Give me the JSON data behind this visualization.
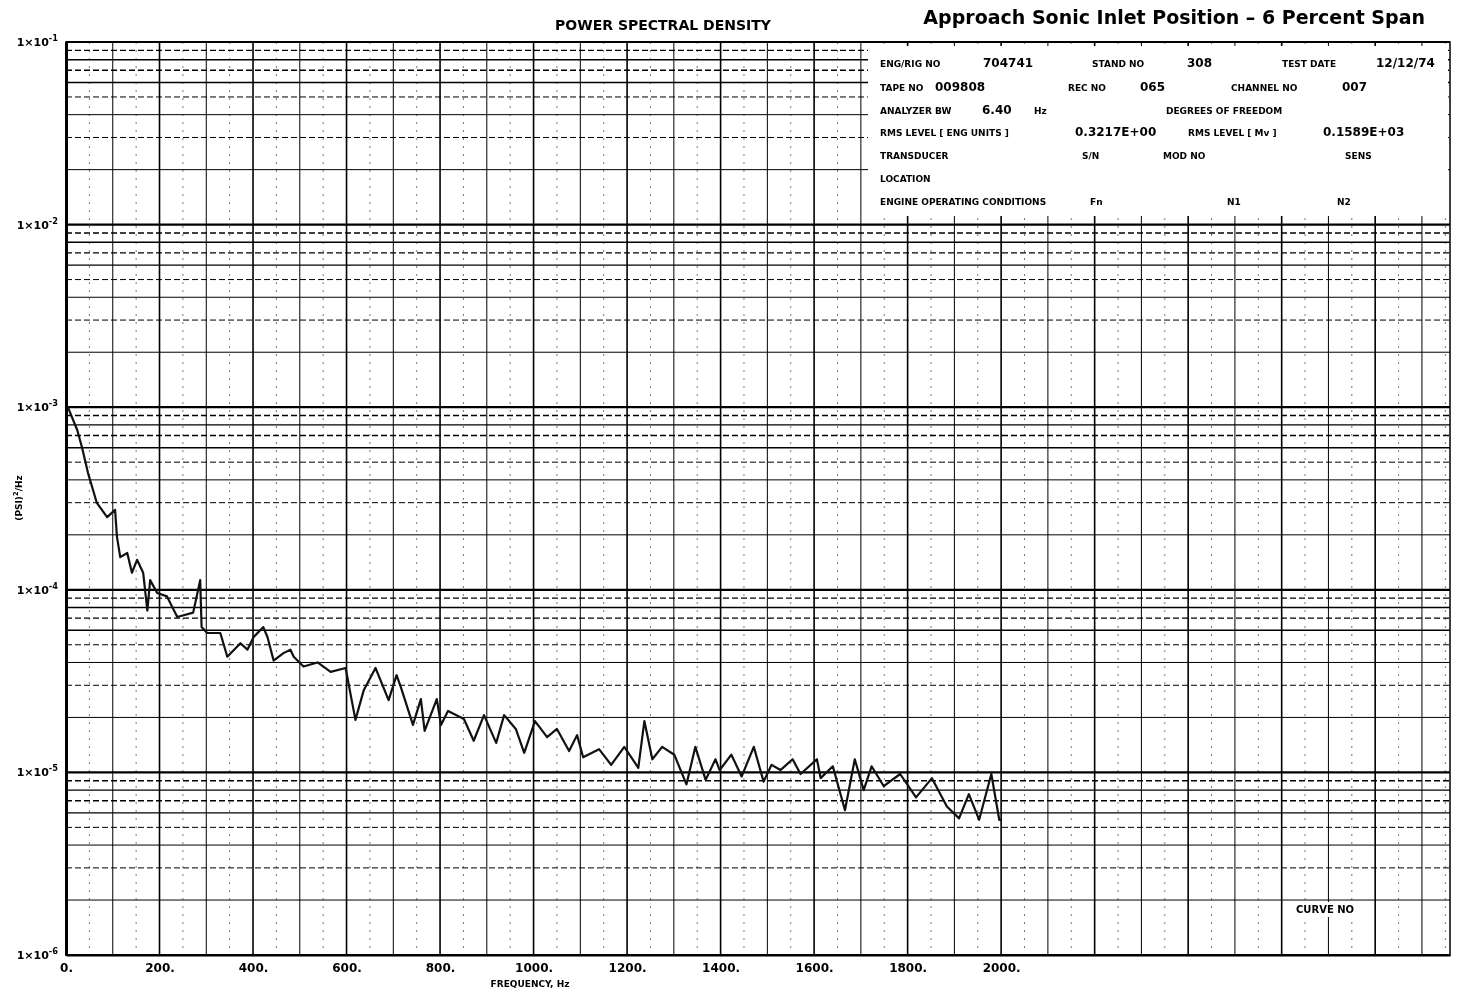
{
  "chart_data": {
    "type": "line",
    "title": "POWER SPECTRAL DENSITY",
    "subtitle": "Approach Sonic Inlet Position – 6 Percent Span",
    "xlabel": "FREQUENCY, Hz",
    "ylabel": "(PSI)$^{2}$/Hz",
    "log": "y",
    "grid": true,
    "marker": "none",
    "line_style": "solid",
    "xlim": [
      0,
      2960
    ],
    "ylim": [
      1e-06,
      0.1
    ],
    "xticks": [
      {
        "value": 0,
        "label": "0."
      },
      {
        "value": 100,
        "label": null
      },
      {
        "value": 200,
        "label": "200."
      },
      {
        "value": 300,
        "label": null
      },
      {
        "value": 400,
        "label": "400."
      },
      {
        "value": 500,
        "label": null
      },
      {
        "value": 600,
        "label": "600."
      },
      {
        "value": 700,
        "label": null
      },
      {
        "value": 800,
        "label": "800."
      },
      {
        "value": 900,
        "label": null
      },
      {
        "value": 1000,
        "label": "1000."
      },
      {
        "value": 1100,
        "label": null
      },
      {
        "value": 1200,
        "label": "1200."
      },
      {
        "value": 1300,
        "label": null
      },
      {
        "value": 1400,
        "label": "1400."
      },
      {
        "value": 1500,
        "label": null
      },
      {
        "value": 1600,
        "label": "1600."
      },
      {
        "value": 1700,
        "label": null
      },
      {
        "value": 1800,
        "label": "1800."
      },
      {
        "value": 1900,
        "label": null
      },
      {
        "value": 2000,
        "label": "2000."
      },
      {
        "value": 2100,
        "label": null
      },
      {
        "value": 2200,
        "label": null
      },
      {
        "value": 2300,
        "label": null
      },
      {
        "value": 2400,
        "label": null
      },
      {
        "value": 2500,
        "label": null
      },
      {
        "value": 2600,
        "label": null
      },
      {
        "value": 2700,
        "label": null
      },
      {
        "value": 2800,
        "label": null
      },
      {
        "value": 2900,
        "label": null
      }
    ],
    "yticks": [
      {
        "value": 1e-06,
        "label": "1×10$^{-6}$"
      },
      {
        "value": 1e-05,
        "label": "1×10$^{-5}$"
      },
      {
        "value": 0.0001,
        "label": "1×10$^{-4}$"
      },
      {
        "value": 0.001,
        "label": "1×10$^{-3}$"
      },
      {
        "value": 0.01,
        "label": "1×10$^{-2}$"
      },
      {
        "value": 0.1,
        "label": "1×10$^{-1}$"
      }
    ],
    "x": [
      4,
      24,
      34,
      47,
      66,
      88,
      105,
      109,
      116,
      131,
      141,
      152,
      165,
      174,
      180,
      195,
      216,
      238,
      272,
      287,
      290,
      302,
      330,
      345,
      373,
      388,
      401,
      422,
      431,
      444,
      465,
      480,
      487,
      508,
      538,
      566,
      598,
      619,
      637,
      662,
      690,
      707,
      716,
      742,
      759,
      767,
      793,
      802,
      817,
      851,
      872,
      894,
      920,
      937,
      962,
      980,
      1003,
      1029,
      1050,
      1076,
      1093,
      1106,
      1140,
      1166,
      1194,
      1224,
      1237,
      1254,
      1275,
      1301,
      1327,
      1346,
      1368,
      1389,
      1398,
      1423,
      1445,
      1471,
      1492,
      1509,
      1528,
      1554,
      1571,
      1606,
      1614,
      1640,
      1666,
      1687,
      1706,
      1723,
      1749,
      1784,
      1818,
      1852,
      1884,
      1910,
      1931,
      1953,
      1979,
      1996,
      2000
    ],
    "series": [
      {
        "color": "#111111",
        "values": [
          0.001,
          0.00075,
          0.000605,
          0.000437,
          0.000299,
          0.00025,
          0.000274,
          0.000195,
          0.000151,
          0.000159,
          0.000124,
          0.000146,
          0.000124,
          7.7e-05,
          0.000113,
          9.6e-05,
          9.2e-05,
          7.1e-05,
          7.5e-05,
          0.000113,
          6.25e-05,
          5.8e-05,
          5.8e-05,
          4.3e-05,
          5.1e-05,
          4.7e-05,
          5.5e-05,
          6.25e-05,
          5.5e-05,
          4.1e-05,
          4.5e-05,
          4.7e-05,
          4.3e-05,
          3.8e-05,
          4e-05,
          3.55e-05,
          3.73e-05,
          1.94e-05,
          2.83e-05,
          3.73e-05,
          2.49e-05,
          3.41e-05,
          2.94e-05,
          1.82e-05,
          2.52e-05,
          1.69e-05,
          2.52e-05,
          1.82e-05,
          2.17e-05,
          1.96e-05,
          1.49e-05,
          2.06e-05,
          1.45e-05,
          2.06e-05,
          1.73e-05,
          1.28e-05,
          1.91e-05,
          1.56e-05,
          1.73e-05,
          1.31e-05,
          1.6e-05,
          1.21e-05,
          1.34e-05,
          1.1e-05,
          1.38e-05,
          1.06e-05,
          1.91e-05,
          1.18e-05,
          1.38e-05,
          1.25e-05,
          8.6e-06,
          1.38e-05,
          9.1e-06,
          1.18e-05,
          1.03e-05,
          1.25e-05,
          9.5e-06,
          1.38e-05,
          8.9e-06,
          1.1e-05,
          1.03e-05,
          1.18e-05,
          9.8e-06,
          1.18e-05,
          9.3e-06,
          1.08e-05,
          6.2e-06,
          1.18e-05,
          8e-06,
          1.08e-05,
          8.4e-06,
          9.8e-06,
          7.3e-06,
          9.3e-06,
          6.5e-06,
          5.6e-06,
          7.6e-06,
          5.5e-06,
          9.8e-06,
          5.5e-06,
          5.5e-06
        ]
      }
    ],
    "annotations": [
      "ENG/RIG NO",
      "704741",
      "STAND NO",
      "308",
      "TEST DATE",
      "12/12/74",
      "TAPE NO",
      "009808",
      "REC NO",
      "065",
      "CHANNEL NO",
      "007",
      "ANALYZER BW",
      "6.40",
      "Hz",
      "DEGREES OF FREEDOM",
      "RMS LEVEL [ ENG UNITS ]",
      "0.3217E+00",
      "RMS LEVEL [ Mv ]",
      "0.1589E+03",
      "TRANSDUCER",
      "S/N",
      "MOD NO",
      "SENS",
      "LOCATION",
      "ENGINE OPERATING CONDITIONS",
      "Fn",
      "N1",
      "N2",
      "CURVE NO"
    ]
  }
}
